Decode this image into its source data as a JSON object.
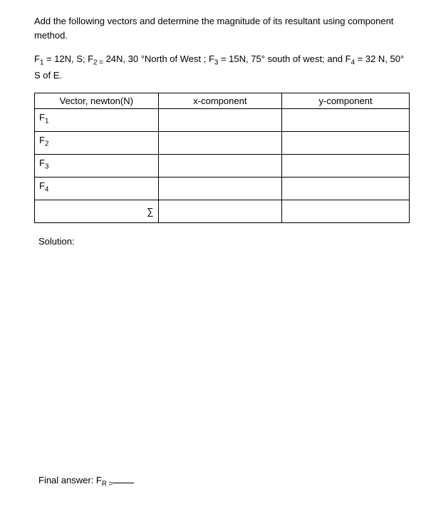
{
  "intro": "Add the following vectors and determine the magnitude of its resultant using component method.",
  "given_html": "F<sub>1</sub> = 12N, S; F<sub>2 =</sub> 24N, 30 °North of West ; F<sub>3</sub> = 15N, 75° south of west; and F<sub>4</sub> = 32 N, 50° S of E.",
  "table": {
    "headers": [
      "Vector, newton(N)",
      "x-component",
      "y-component"
    ],
    "rows_html": [
      "F<sub>1</sub>",
      "F<sub>2</sub>",
      "F<sub>3</sub>",
      "F<sub>4</sub>"
    ],
    "sigma": "∑"
  },
  "solution_label": "Solution:",
  "final_answer_html": "Final answer: F<sub>R =</sub>"
}
